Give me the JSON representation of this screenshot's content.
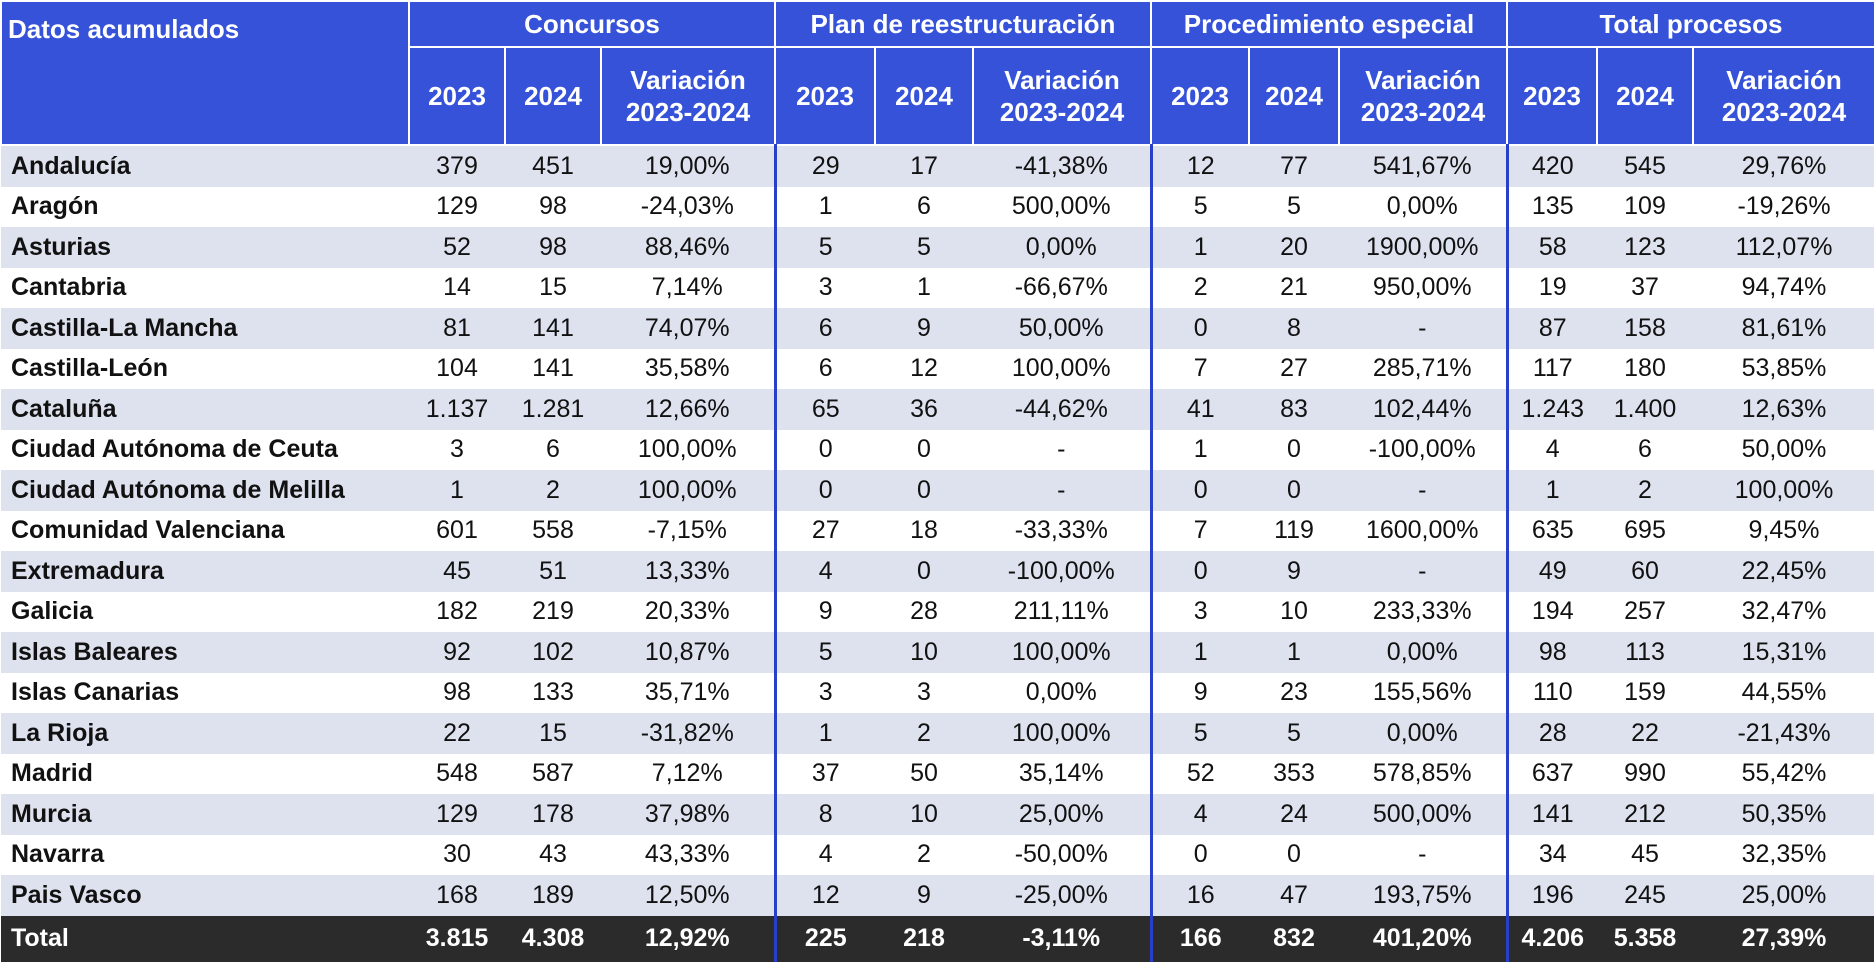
{
  "header": {
    "corner": "Datos acumulados",
    "groups": [
      {
        "title": "Concursos",
        "columns": [
          "2023",
          "2024",
          "Variación 2023-2024"
        ]
      },
      {
        "title": "Plan de reestructuración",
        "columns": [
          "2023",
          "2024",
          "Variación 2023-2024"
        ]
      },
      {
        "title": "Procedimiento especial",
        "columns": [
          "2023",
          "2024",
          "Variación 2023-2024"
        ]
      },
      {
        "title": "Total procesos",
        "columns": [
          "2023",
          "2024",
          "Variación 2023-2024"
        ]
      }
    ]
  },
  "table": {
    "rows": [
      [
        "Andalucía",
        "379",
        "451",
        "19,00%",
        "29",
        "17",
        "-41,38%",
        "12",
        "77",
        "541,67%",
        "420",
        "545",
        "29,76%"
      ],
      [
        "Aragón",
        "129",
        "98",
        "-24,03%",
        "1",
        "6",
        "500,00%",
        "5",
        "5",
        "0,00%",
        "135",
        "109",
        "-19,26%"
      ],
      [
        "Asturias",
        "52",
        "98",
        "88,46%",
        "5",
        "5",
        "0,00%",
        "1",
        "20",
        "1900,00%",
        "58",
        "123",
        "112,07%"
      ],
      [
        "Cantabria",
        "14",
        "15",
        "7,14%",
        "3",
        "1",
        "-66,67%",
        "2",
        "21",
        "950,00%",
        "19",
        "37",
        "94,74%"
      ],
      [
        "Castilla-La Mancha",
        "81",
        "141",
        "74,07%",
        "6",
        "9",
        "50,00%",
        "0",
        "8",
        "-",
        "87",
        "158",
        "81,61%"
      ],
      [
        "Castilla-León",
        "104",
        "141",
        "35,58%",
        "6",
        "12",
        "100,00%",
        "7",
        "27",
        "285,71%",
        "117",
        "180",
        "53,85%"
      ],
      [
        "Cataluña",
        "1.137",
        "1.281",
        "12,66%",
        "65",
        "36",
        "-44,62%",
        "41",
        "83",
        "102,44%",
        "1.243",
        "1.400",
        "12,63%"
      ],
      [
        "Ciudad Autónoma de Ceuta",
        "3",
        "6",
        "100,00%",
        "0",
        "0",
        "-",
        "1",
        "0",
        "-100,00%",
        "4",
        "6",
        "50,00%"
      ],
      [
        "Ciudad Autónoma de Melilla",
        "1",
        "2",
        "100,00%",
        "0",
        "0",
        "-",
        "0",
        "0",
        "-",
        "1",
        "2",
        "100,00%"
      ],
      [
        "Comunidad Valenciana",
        "601",
        "558",
        "-7,15%",
        "27",
        "18",
        "-33,33%",
        "7",
        "119",
        "1600,00%",
        "635",
        "695",
        "9,45%"
      ],
      [
        "Extremadura",
        "45",
        "51",
        "13,33%",
        "4",
        "0",
        "-100,00%",
        "0",
        "9",
        "-",
        "49",
        "60",
        "22,45%"
      ],
      [
        "Galicia",
        "182",
        "219",
        "20,33%",
        "9",
        "28",
        "211,11%",
        "3",
        "10",
        "233,33%",
        "194",
        "257",
        "32,47%"
      ],
      [
        "Islas Baleares",
        "92",
        "102",
        "10,87%",
        "5",
        "10",
        "100,00%",
        "1",
        "1",
        "0,00%",
        "98",
        "113",
        "15,31%"
      ],
      [
        "Islas Canarias",
        "98",
        "133",
        "35,71%",
        "3",
        "3",
        "0,00%",
        "9",
        "23",
        "155,56%",
        "110",
        "159",
        "44,55%"
      ],
      [
        "La Rioja",
        "22",
        "15",
        "-31,82%",
        "1",
        "2",
        "100,00%",
        "5",
        "5",
        "0,00%",
        "28",
        "22",
        "-21,43%"
      ],
      [
        "Madrid",
        "548",
        "587",
        "7,12%",
        "37",
        "50",
        "35,14%",
        "52",
        "353",
        "578,85%",
        "637",
        "990",
        "55,42%"
      ],
      [
        "Murcia",
        "129",
        "178",
        "37,98%",
        "8",
        "10",
        "25,00%",
        "4",
        "24",
        "500,00%",
        "141",
        "212",
        "50,35%"
      ],
      [
        "Navarra",
        "30",
        "43",
        "43,33%",
        "4",
        "2",
        "-50,00%",
        "0",
        "0",
        "-",
        "34",
        "45",
        "32,35%"
      ],
      [
        "Pais Vasco",
        "168",
        "189",
        "12,50%",
        "12",
        "9",
        "-25,00%",
        "16",
        "47",
        "193,75%",
        "196",
        "245",
        "25,00%"
      ]
    ],
    "total": [
      "Total",
      "3.815",
      "4.308",
      "12,92%",
      "225",
      "218",
      "-3,11%",
      "166",
      "832",
      "401,20%",
      "4.206",
      "5.358",
      "27,39%"
    ]
  }
}
